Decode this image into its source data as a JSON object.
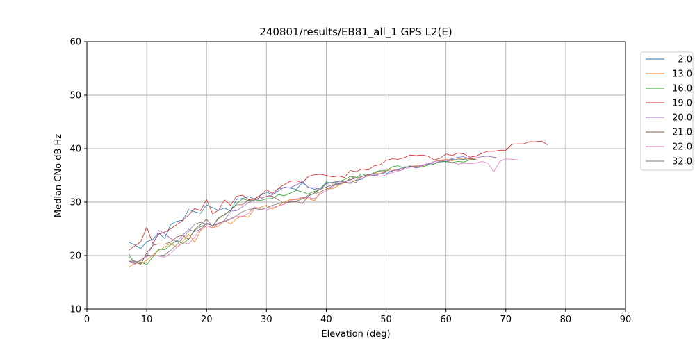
{
  "chart_data": {
    "type": "line",
    "title": "240801/results/EB81_all_1 GPS L2(E)",
    "xlabel": "Elevation (deg)",
    "ylabel": "Median CNo dB Hz",
    "xlim": [
      0,
      90
    ],
    "ylim": [
      10,
      60
    ],
    "xticks": [
      "0",
      "10",
      "20",
      "30",
      "40",
      "50",
      "60",
      "70",
      "80",
      "90"
    ],
    "yticks": [
      "10",
      "20",
      "30",
      "40",
      "50",
      "60"
    ],
    "grid": true,
    "legend_position": "outside-right",
    "series": [
      {
        "name": "2.0",
        "color": "#1f77b4",
        "x": [
          7,
          8,
          9,
          10,
          11,
          12,
          13,
          14,
          15,
          16,
          17,
          18,
          19,
          20,
          21,
          22,
          23,
          24,
          25,
          26,
          27,
          28,
          29,
          30,
          31,
          32,
          33,
          34,
          35,
          36,
          37,
          38,
          39,
          40,
          41,
          42,
          43,
          44,
          45,
          46,
          47,
          48,
          49,
          50,
          51,
          52,
          53,
          54,
          55,
          56,
          57,
          58,
          59,
          60,
          61,
          62,
          63,
          64,
          65
        ],
        "y": [
          22.5,
          22.0,
          21.3,
          22.6,
          23.0,
          24.2,
          23.2,
          25.8,
          26.4,
          26.6,
          28.6,
          28.2,
          27.9,
          29.5,
          29.0,
          28.4,
          28.9,
          28.3,
          30.5,
          30.7,
          31.0,
          30.6,
          31.2,
          31.9,
          31.4,
          32.1,
          32.8,
          32.6,
          32.4,
          33.6,
          32.8,
          32.4,
          32.6,
          33.5,
          33.7,
          33.3,
          33.7,
          33.6,
          34.1,
          34.3,
          35.2,
          35.0,
          35.3,
          35.3,
          35.8,
          36.1,
          36.6,
          36.6,
          36.7,
          36.9,
          37.0,
          37.6,
          37.8,
          37.5,
          38.0,
          37.9,
          38.0,
          38.1,
          38.0
        ]
      },
      {
        "name": "13.0",
        "color": "#ff7f0e",
        "x": [
          7,
          8,
          9,
          10,
          11,
          12,
          13,
          14,
          15,
          16,
          17,
          18,
          19,
          20,
          21,
          22,
          23,
          24,
          25,
          26,
          27,
          28,
          29,
          30,
          31,
          32,
          33,
          34,
          35,
          36,
          37,
          38,
          39,
          40,
          41,
          42,
          43,
          44,
          45,
          46,
          47,
          48,
          49,
          50,
          51,
          52,
          53,
          54,
          55,
          56,
          57,
          58,
          59,
          60,
          61,
          62,
          63,
          64,
          65
        ],
        "y": [
          17.8,
          18.6,
          18.5,
          19.1,
          20.1,
          21.0,
          21.6,
          22.3,
          21.5,
          22.6,
          24.0,
          22.5,
          24.7,
          25.6,
          25.2,
          25.5,
          26.6,
          25.9,
          26.9,
          27.4,
          27.2,
          28.8,
          29.0,
          29.4,
          28.7,
          29.3,
          30.0,
          30.5,
          30.4,
          30.8,
          30.6,
          30.3,
          31.8,
          32.5,
          32.5,
          33.1,
          33.6,
          33.5,
          34.2,
          34.8,
          35.0,
          35.4,
          35.3,
          35.8,
          36.2,
          35.9,
          36.4,
          36.7,
          36.8,
          36.7,
          37.2,
          37.6,
          37.8,
          38.0,
          37.7,
          38.1,
          38.2,
          38.0,
          38.1
        ]
      },
      {
        "name": "16.0",
        "color": "#2ca02c",
        "x": [
          7,
          8,
          9,
          10,
          11,
          12,
          13,
          14,
          15,
          16,
          17,
          18,
          19,
          20,
          21,
          22,
          23,
          24,
          25,
          26,
          27,
          28,
          29,
          30,
          31,
          32,
          33,
          34,
          35,
          36,
          37,
          38,
          39,
          40,
          41,
          42,
          43,
          44,
          45,
          46,
          47,
          48,
          49,
          50,
          51,
          52,
          53,
          54,
          55,
          56,
          57,
          58,
          59,
          60,
          61,
          62,
          63,
          64,
          65
        ],
        "y": [
          20.3,
          18.5,
          18.8,
          18.3,
          19.7,
          21.2,
          21.1,
          22.0,
          22.8,
          22.2,
          23.1,
          24.7,
          25.4,
          25.9,
          25.6,
          26.9,
          27.7,
          28.5,
          29.7,
          30.6,
          30.3,
          30.4,
          30.3,
          30.6,
          30.7,
          31.4,
          31.2,
          31.7,
          32.2,
          31.9,
          31.5,
          32.0,
          32.3,
          33.8,
          33.5,
          33.8,
          34.2,
          34.8,
          34.6,
          35.3,
          34.8,
          35.6,
          35.9,
          35.8,
          36.6,
          36.8,
          36.4,
          36.7,
          36.4,
          36.6,
          36.9,
          37.1,
          37.5,
          37.6,
          37.4,
          37.6,
          37.5,
          37.9,
          38.0
        ]
      },
      {
        "name": "19.0",
        "color": "#d62728",
        "x": [
          7,
          8,
          9,
          10,
          11,
          12,
          13,
          14,
          15,
          16,
          17,
          18,
          19,
          20,
          21,
          22,
          23,
          24,
          25,
          26,
          27,
          28,
          29,
          30,
          31,
          32,
          33,
          34,
          35,
          36,
          37,
          38,
          39,
          40,
          41,
          42,
          43,
          44,
          45,
          46,
          47,
          48,
          49,
          50,
          51,
          52,
          53,
          54,
          55,
          56,
          57,
          58,
          59,
          60,
          61,
          62,
          63,
          64,
          65,
          66,
          67,
          68,
          69,
          70,
          71,
          72,
          73,
          74,
          75,
          76,
          77
        ],
        "y": [
          21.0,
          21.8,
          22.6,
          25.3,
          22.3,
          24.0,
          24.4,
          25.0,
          25.8,
          26.5,
          27.6,
          28.8,
          28.4,
          30.5,
          27.8,
          28.5,
          30.4,
          29.4,
          31.1,
          31.3,
          30.5,
          30.6,
          31.3,
          32.3,
          31.6,
          32.6,
          33.3,
          33.9,
          34.0,
          33.6,
          34.8,
          35.1,
          35.2,
          35.0,
          34.7,
          34.9,
          34.6,
          35.9,
          35.7,
          36.2,
          36.0,
          36.8,
          37.0,
          37.8,
          38.1,
          38.0,
          38.3,
          38.8,
          38.7,
          38.8,
          38.6,
          37.9,
          38.2,
          39.0,
          38.7,
          39.2,
          39.0,
          38.4,
          38.6,
          39.1,
          39.5,
          39.5,
          39.7,
          39.7,
          40.8,
          40.9,
          40.9,
          41.3,
          41.3,
          41.4,
          40.7
        ]
      },
      {
        "name": "20.0",
        "color": "#9467bd",
        "x": [
          7,
          8,
          9,
          10,
          11,
          12,
          13,
          14,
          15,
          16,
          17,
          18,
          19,
          20,
          21,
          22,
          23,
          24,
          25,
          26,
          27,
          28,
          29,
          30,
          31,
          32,
          33,
          34,
          35,
          36,
          37,
          38,
          39,
          40,
          41,
          42,
          43,
          44,
          45,
          46,
          47,
          48,
          49,
          50,
          51,
          52,
          53,
          54,
          55,
          56,
          57,
          58,
          59,
          60,
          61,
          62,
          63,
          64,
          65,
          66,
          67,
          68,
          69
        ],
        "y": [
          19.0,
          18.6,
          19.1,
          19.9,
          21.9,
          24.7,
          24.1,
          23.2,
          22.6,
          23.8,
          24.9,
          24.5,
          24.9,
          26.1,
          25.6,
          25.9,
          26.6,
          28.3,
          28.4,
          29.1,
          29.9,
          30.4,
          30.6,
          31.1,
          31.3,
          32.5,
          32.7,
          32.7,
          33.2,
          33.9,
          32.7,
          32.7,
          32.3,
          33.4,
          33.7,
          33.9,
          33.8,
          33.5,
          33.7,
          34.8,
          35.2,
          34.9,
          35.3,
          35.6,
          35.9,
          36.0,
          36.3,
          36.8,
          36.4,
          36.8,
          37.1,
          37.3,
          37.6,
          37.8,
          38.1,
          38.4,
          38.5,
          38.1,
          38.3,
          38.5,
          38.6,
          38.4,
          38.2
        ]
      },
      {
        "name": "21.0",
        "color": "#8c564b",
        "x": [
          7,
          8,
          9,
          10,
          11,
          12,
          13,
          14,
          15,
          16,
          17,
          18,
          19,
          20,
          21,
          22,
          23,
          24,
          25,
          26,
          27,
          28,
          29,
          30,
          31,
          32,
          33,
          34,
          35,
          36,
          37,
          38,
          39,
          40,
          41,
          42,
          43,
          44,
          45
        ],
        "y": [
          18.9,
          19.0,
          18.3,
          20.5,
          21.9,
          22.2,
          22.1,
          22.5,
          23.5,
          23.8,
          23.0,
          24.9,
          25.8,
          26.8,
          25.4,
          27.1,
          27.6,
          28.5,
          29.5,
          29.5,
          30.4,
          30.4,
          30.9,
          31.0,
          31.1,
          30.4,
          29.7,
          30.0,
          30.1,
          29.7,
          31.1,
          31.7,
          32.4,
          32.8,
          33.2,
          33.5,
          33.7,
          34.4,
          34.9
        ]
      },
      {
        "name": "22.0",
        "color": "#e377c2",
        "x": [
          7,
          8,
          9,
          10,
          11,
          12,
          13,
          14,
          15,
          16,
          17,
          18,
          19,
          20,
          21,
          22,
          23,
          24,
          25,
          26,
          27,
          28,
          29,
          30,
          31,
          32,
          33,
          34,
          35,
          36,
          37,
          38,
          39,
          40,
          41,
          42,
          43,
          44,
          45,
          46,
          47,
          48,
          49,
          50,
          51,
          52,
          53,
          54,
          55,
          56,
          57,
          58,
          59,
          60,
          61,
          62,
          63,
          64,
          65,
          66,
          67,
          68,
          69,
          70,
          71,
          72
        ],
        "y": [
          19.0,
          18.3,
          19.3,
          19.8,
          20.1,
          19.9,
          19.7,
          20.4,
          21.5,
          22.4,
          22.2,
          23.4,
          25.1,
          25.6,
          25.1,
          26.0,
          26.3,
          26.8,
          27.3,
          27.3,
          27.9,
          29.1,
          28.7,
          28.5,
          29.0,
          29.3,
          29.6,
          30.3,
          30.6,
          30.9,
          30.8,
          30.7,
          31.5,
          32.1,
          32.8,
          33.6,
          33.7,
          34.1,
          34.5,
          34.5,
          34.9,
          35.2,
          34.8,
          35.1,
          35.5,
          35.8,
          36.1,
          36.5,
          36.6,
          36.9,
          37.2,
          37.6,
          37.7,
          37.8,
          37.4,
          37.1,
          37.3,
          37.2,
          37.3,
          37.6,
          37.3,
          35.7,
          37.6,
          38.1,
          38.0,
          37.9
        ]
      },
      {
        "name": "32.0",
        "color": "#7f7f7f",
        "x": [
          7,
          8,
          9,
          10,
          11,
          12,
          13,
          14,
          15,
          16,
          17,
          18,
          19,
          20,
          21,
          22,
          23,
          24,
          25,
          26,
          27,
          28,
          29,
          30,
          31,
          32,
          33,
          34,
          35,
          36,
          37,
          38,
          39,
          40,
          41,
          42,
          43,
          44,
          45,
          46,
          47,
          48,
          49,
          50
        ],
        "y": [
          19.8,
          18.8,
          19.0,
          20.1,
          20.0,
          20.0,
          20.1,
          21.0,
          22.0,
          23.3,
          24.5,
          25.9,
          26.2,
          25.9,
          25.6,
          26.1,
          26.4,
          26.9,
          27.5,
          28.2,
          28.6,
          28.8,
          28.6,
          28.9,
          29.4,
          29.7,
          29.9,
          30.1,
          30.2,
          30.6,
          31.3,
          31.5,
          31.9,
          32.4,
          33.0,
          33.4,
          33.8,
          34.2,
          34.5,
          34.8,
          35.1,
          35.4,
          35.8,
          36.0
        ]
      }
    ]
  }
}
